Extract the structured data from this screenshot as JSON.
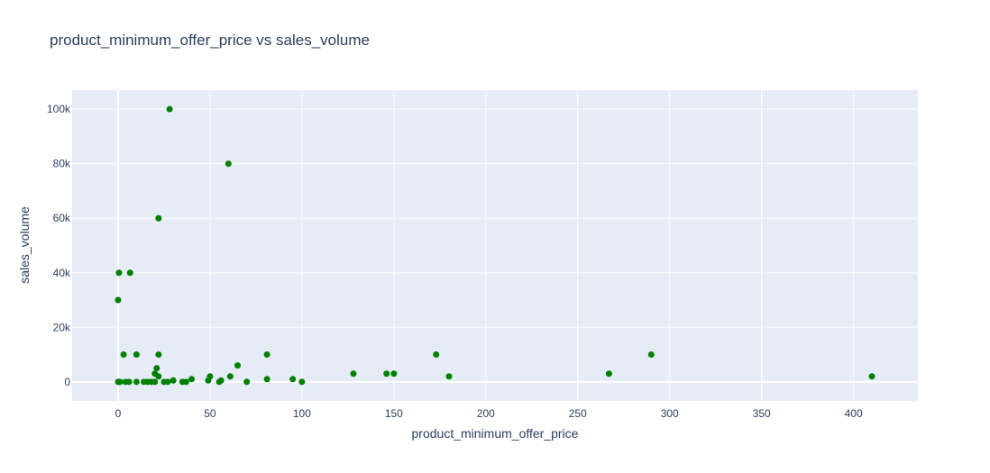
{
  "chart_data": {
    "type": "scatter",
    "title": "product_minimum_offer_price vs sales_volume",
    "xlabel": "product_minimum_offer_price",
    "ylabel": "sales_volume",
    "xlim": [
      -25,
      435
    ],
    "ylim": [
      -7000,
      107000
    ],
    "x_ticks": [
      0,
      50,
      100,
      150,
      200,
      250,
      300,
      350,
      400
    ],
    "x_tick_labels": [
      "0",
      "50",
      "100",
      "150",
      "200",
      "250",
      "300",
      "350",
      "400"
    ],
    "y_ticks": [
      0,
      20000,
      40000,
      60000,
      80000,
      100000
    ],
    "y_tick_labels": [
      "0",
      "20k",
      "40k",
      "60k",
      "80k",
      "100k"
    ],
    "grid": true,
    "colors": {
      "plot_bg": "#e5ecf6",
      "grid": "#ffffff",
      "marker": "#008000",
      "text": "#2a3f5f"
    },
    "x": [
      28,
      60,
      22,
      0.5,
      6.5,
      0,
      3,
      10,
      22,
      81,
      173,
      290,
      65,
      21,
      20,
      22,
      50,
      61,
      128,
      146,
      150,
      180,
      267,
      410,
      0,
      0.5,
      1,
      4,
      6,
      10,
      14,
      16,
      18,
      20,
      25,
      27,
      30,
      35,
      37,
      40,
      49,
      55,
      56,
      70,
      81,
      95,
      100
    ],
    "y": [
      100000,
      80000,
      60000,
      40000,
      40000,
      30000,
      10000,
      10000,
      10000,
      10000,
      10000,
      10000,
      6000,
      5000,
      3000,
      2000,
      2000,
      2000,
      3000,
      3000,
      3000,
      2000,
      3000,
      2000,
      0,
      0,
      0,
      0,
      0,
      0,
      0,
      0,
      0,
      0,
      0,
      0,
      500,
      0,
      0,
      1000,
      500,
      0,
      500,
      0,
      1000,
      1000,
      0
    ]
  }
}
